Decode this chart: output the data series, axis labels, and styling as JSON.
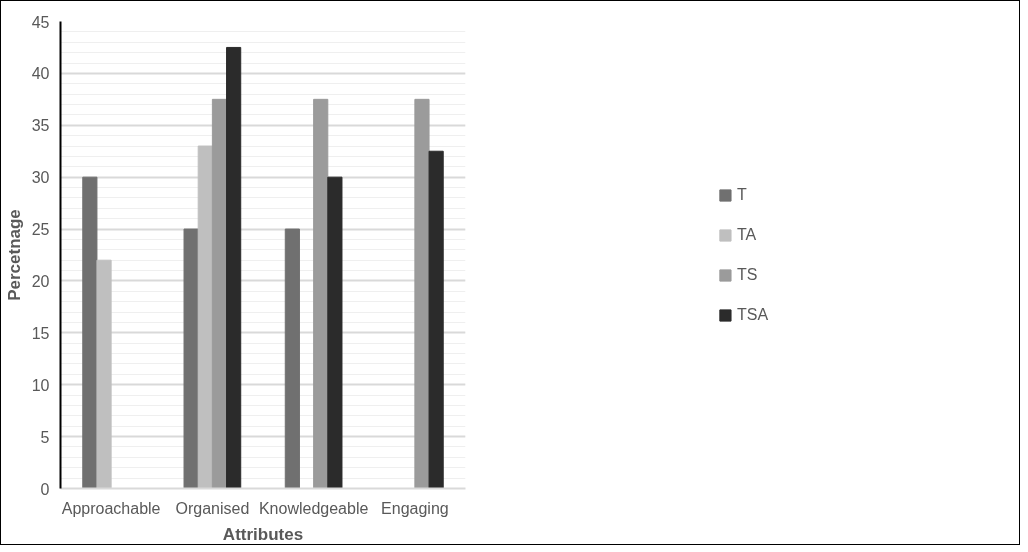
{
  "chart_data": {
    "type": "bar",
    "xlabel": "Attributes",
    "ylabel": "Percetnage",
    "categories": [
      "Approachable",
      "Organised",
      "Knowledgeable",
      "Engaging"
    ],
    "series": [
      {
        "name": "T",
        "color": "#707070",
        "values": [
          30,
          25,
          25,
          0
        ]
      },
      {
        "name": "TA",
        "color": "#bfbfbf",
        "values": [
          22,
          33,
          0,
          0
        ]
      },
      {
        "name": "TS",
        "color": "#9b9b9b",
        "values": [
          0,
          37.5,
          37.5,
          37.5
        ]
      },
      {
        "name": "TSA",
        "color": "#2b2b2b",
        "values": [
          0,
          42.5,
          30,
          32.5
        ]
      }
    ],
    "ylim": [
      0,
      45
    ],
    "yticks": [
      0,
      5,
      10,
      15,
      20,
      25,
      30,
      35,
      40,
      45
    ],
    "grid": "y",
    "legend": "right"
  }
}
